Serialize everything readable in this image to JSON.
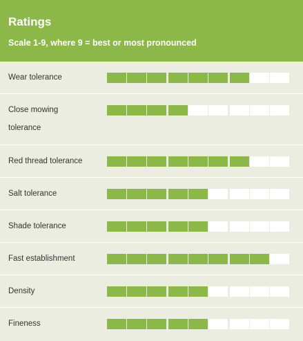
{
  "header": {
    "title": "Ratings",
    "subtitle": "Scale 1-9, where 9 = best or most pronounced"
  },
  "scale_max": 9,
  "colors": {
    "accent": "#8cb84a",
    "background": "#ebede0",
    "empty": "#ffffff"
  },
  "ratings": [
    {
      "label": "Wear tolerance",
      "value": 7
    },
    {
      "label": "Close mowing tolerance",
      "value": 4
    },
    {
      "label": "Red thread tolerance",
      "value": 7
    },
    {
      "label": "Salt tolerance",
      "value": 5
    },
    {
      "label": "Shade tolerance",
      "value": 5
    },
    {
      "label": "Fast establishment",
      "value": 8
    },
    {
      "label": "Density",
      "value": 5
    },
    {
      "label": "Fineness",
      "value": 5
    }
  ]
}
